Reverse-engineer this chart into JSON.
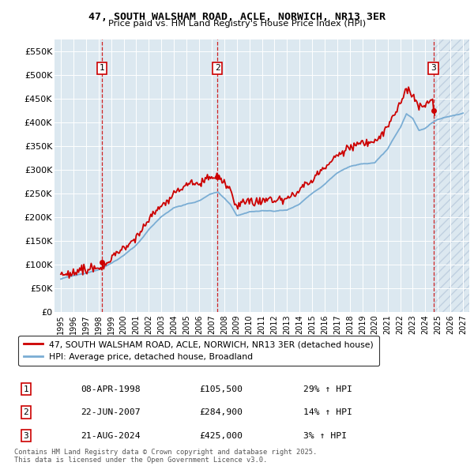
{
  "title": "47, SOUTH WALSHAM ROAD, ACLE, NORWICH, NR13 3ER",
  "subtitle": "Price paid vs. HM Land Registry's House Price Index (HPI)",
  "legend_line1": "47, SOUTH WALSHAM ROAD, ACLE, NORWICH, NR13 3ER (detached house)",
  "legend_line2": "HPI: Average price, detached house, Broadland",
  "red_color": "#cc0000",
  "blue_color": "#7aadd4",
  "bg_color": "#dce8f0",
  "hatch_color": "#c0d0e0",
  "transaction_dates": [
    1998.27,
    2007.47,
    2024.64
  ],
  "transaction_prices": [
    105500,
    284900,
    425000
  ],
  "transaction_labels": [
    "1",
    "2",
    "3"
  ],
  "transaction_info": [
    {
      "label": "1",
      "date": "08-APR-1998",
      "price": "£105,500",
      "hpi": "29% ↑ HPI"
    },
    {
      "label": "2",
      "date": "22-JUN-2007",
      "price": "£284,900",
      "hpi": "14% ↑ HPI"
    },
    {
      "label": "3",
      "date": "21-AUG-2024",
      "price": "£425,000",
      "hpi": "3% ↑ HPI"
    }
  ],
  "ylim": [
    0,
    575000
  ],
  "xlim": [
    1994.5,
    2027.5
  ],
  "yticks": [
    0,
    50000,
    100000,
    150000,
    200000,
    250000,
    300000,
    350000,
    400000,
    450000,
    500000,
    550000
  ],
  "ytick_labels": [
    "£0",
    "£50K",
    "£100K",
    "£150K",
    "£200K",
    "£250K",
    "£300K",
    "£350K",
    "£400K",
    "£450K",
    "£500K",
    "£550K"
  ],
  "xticks": [
    1995,
    1996,
    1997,
    1998,
    1999,
    2000,
    2001,
    2002,
    2003,
    2004,
    2005,
    2006,
    2007,
    2008,
    2009,
    2010,
    2011,
    2012,
    2013,
    2014,
    2015,
    2016,
    2017,
    2018,
    2019,
    2020,
    2021,
    2022,
    2023,
    2024,
    2025,
    2026,
    2027
  ],
  "footer": "Contains HM Land Registry data © Crown copyright and database right 2025.\nThis data is licensed under the Open Government Licence v3.0.",
  "hatch_start": 2024.64,
  "hatch_end": 2027.5
}
